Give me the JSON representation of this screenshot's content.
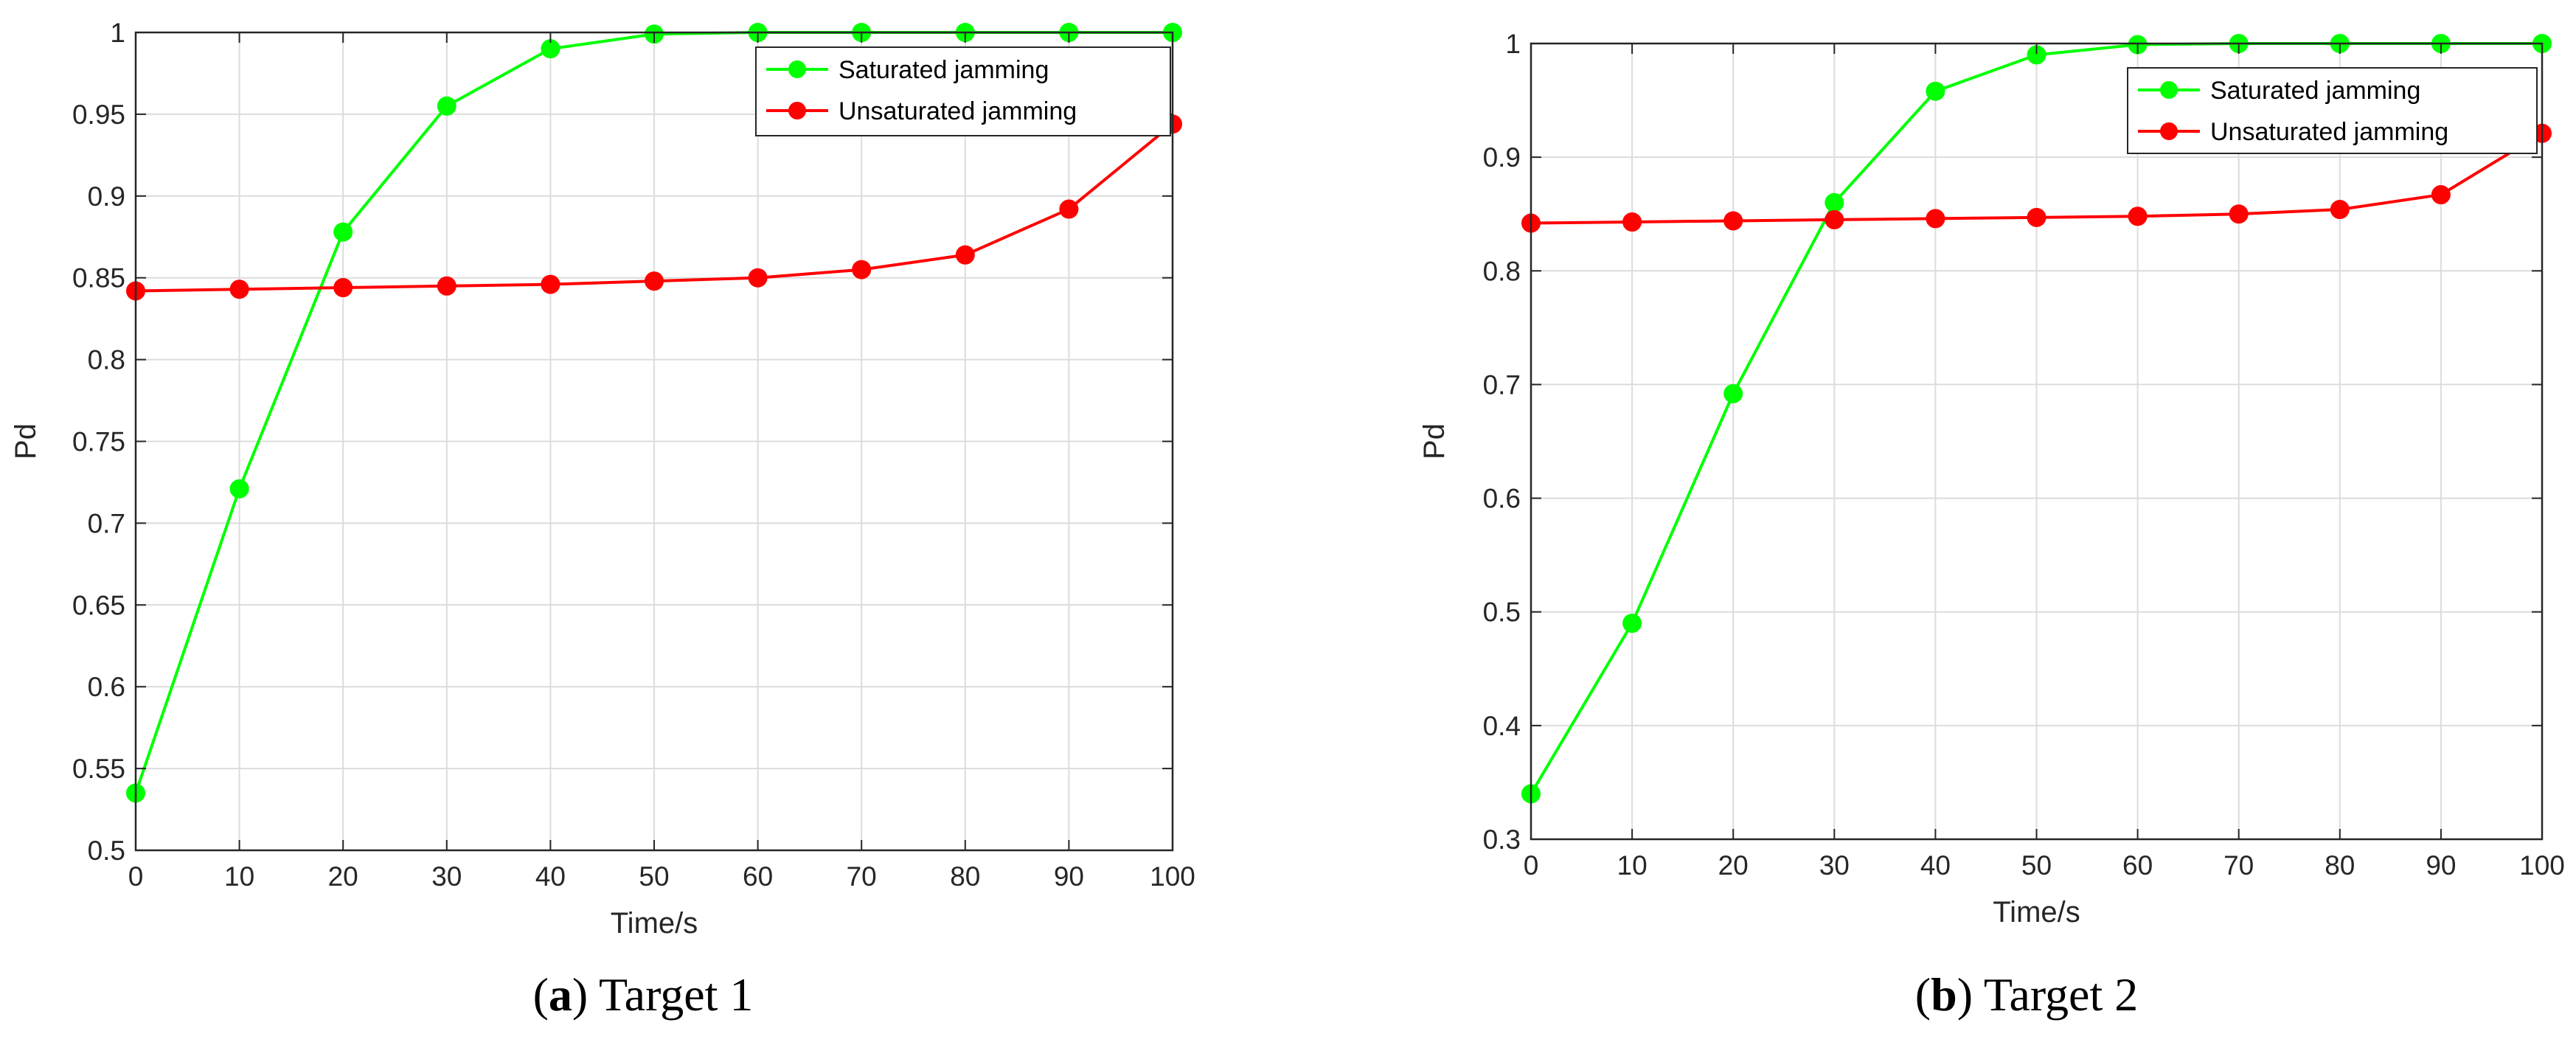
{
  "chart_data": [
    {
      "type": "line",
      "caption": {
        "open": "(",
        "letter": "a",
        "rest": ") Target 1"
      },
      "xlabel": "Time/s",
      "ylabel": "Pd",
      "xlim": [
        0,
        100
      ],
      "ylim": [
        0.5,
        1
      ],
      "xticks": [
        0,
        10,
        20,
        30,
        40,
        50,
        60,
        70,
        80,
        90,
        100
      ],
      "yticks": [
        0.5,
        0.55,
        0.6,
        0.65,
        0.7,
        0.75,
        0.8,
        0.85,
        0.9,
        0.95,
        1
      ],
      "ytick_labels": [
        "0.5",
        "0.55",
        "0.6",
        "0.65",
        "0.7",
        "0.75",
        "0.8",
        "0.85",
        "0.9",
        "0.95",
        "1"
      ],
      "grid": true,
      "legend_position": "top-right",
      "x": [
        0,
        10,
        20,
        30,
        40,
        50,
        60,
        70,
        80,
        90,
        100
      ],
      "series": [
        {
          "name": "Saturated jamming",
          "color": "#00ff00",
          "values": [
            0.535,
            0.721,
            0.878,
            0.955,
            0.99,
            0.999,
            1.0,
            1.0,
            1.0,
            1.0,
            1.0
          ]
        },
        {
          "name": "Unsaturated jamming",
          "color": "#ff0000",
          "values": [
            0.842,
            0.843,
            0.844,
            0.845,
            0.846,
            0.848,
            0.85,
            0.855,
            0.864,
            0.892,
            0.944
          ]
        }
      ]
    },
    {
      "type": "line",
      "caption": {
        "open": "(",
        "letter": "b",
        "rest": ") Target 2"
      },
      "xlabel": "Time/s",
      "ylabel": "Pd",
      "xlim": [
        0,
        100
      ],
      "ylim": [
        0.3,
        1
      ],
      "xticks": [
        0,
        10,
        20,
        30,
        40,
        50,
        60,
        70,
        80,
        90,
        100
      ],
      "yticks": [
        0.3,
        0.4,
        0.5,
        0.6,
        0.7,
        0.8,
        0.9,
        1
      ],
      "ytick_labels": [
        "0.3",
        "0.4",
        "0.5",
        "0.6",
        "0.7",
        "0.8",
        "0.9",
        "1"
      ],
      "grid": true,
      "legend_position": "top-right",
      "x": [
        0,
        10,
        20,
        30,
        40,
        50,
        60,
        70,
        80,
        90,
        100
      ],
      "series": [
        {
          "name": "Saturated jamming",
          "color": "#00ff00",
          "values": [
            0.34,
            0.49,
            0.692,
            0.86,
            0.958,
            0.99,
            0.999,
            1.0,
            1.0,
            1.0,
            1.0
          ]
        },
        {
          "name": "Unsaturated jamming",
          "color": "#ff0000",
          "values": [
            0.842,
            0.843,
            0.844,
            0.845,
            0.846,
            0.847,
            0.848,
            0.85,
            0.854,
            0.867,
            0.921
          ]
        }
      ]
    }
  ]
}
